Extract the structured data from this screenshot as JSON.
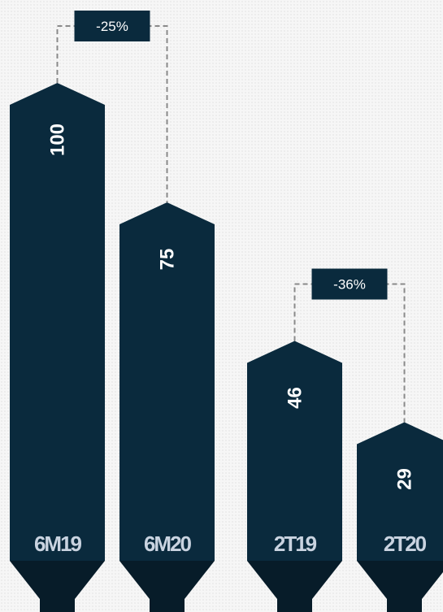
{
  "chart_data": {
    "type": "bar",
    "categories": [
      "6M19",
      "6M20",
      "2T19",
      "2T20"
    ],
    "values": [
      100,
      75,
      46,
      29
    ],
    "comparisons": [
      {
        "from": "6M19",
        "to": "6M20",
        "label": "-25%"
      },
      {
        "from": "2T19",
        "to": "2T20",
        "label": "-36%"
      }
    ],
    "title": "",
    "xlabel": "",
    "ylabel": "",
    "grid": false,
    "legend": "none"
  },
  "colors": {
    "bar": "#0a2a3d",
    "bar_base": "#071c29",
    "leader": "#8a8a8a",
    "category_text": "#c9d3e0"
  }
}
